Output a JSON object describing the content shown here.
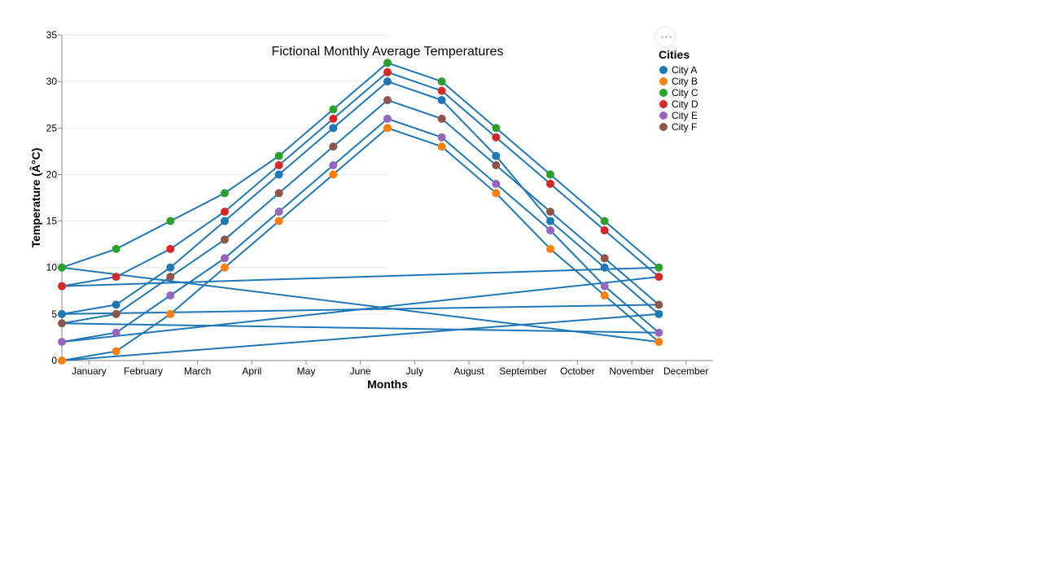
{
  "chart_data": {
    "type": "line",
    "title": "Fictional Monthly Average Temperatures",
    "xlabel": "Months",
    "ylabel": "Temperature (Â°C)",
    "ylim": [
      0,
      35
    ],
    "yticks": [
      0,
      5,
      10,
      15,
      20,
      25,
      30,
      35
    ],
    "grid": true,
    "legend_title": "Cities",
    "legend_position": "top-right",
    "line_color": "#1f77b4",
    "x_domain": [
      "January",
      "February",
      "March",
      "April",
      "May",
      "June",
      "July",
      "August",
      "September",
      "October",
      "November",
      "December"
    ],
    "x": [
      "January",
      "February",
      "March",
      "April",
      "May",
      "June",
      "July",
      "August",
      "September",
      "October",
      "November",
      "December"
    ],
    "series": [
      {
        "name": "City A",
        "color": "#1f77b4",
        "values": [
          5,
          6,
          10,
          15,
          20,
          25,
          30,
          28,
          22,
          15,
          10,
          5
        ]
      },
      {
        "name": "City B",
        "color": "#ff7f0e",
        "values": [
          0,
          1,
          5,
          10,
          15,
          20,
          25,
          23,
          18,
          12,
          7,
          2
        ]
      },
      {
        "name": "City C",
        "color": "#2ca02c",
        "values": [
          10,
          12,
          15,
          18,
          22,
          27,
          32,
          30,
          25,
          20,
          15,
          10
        ]
      },
      {
        "name": "City D",
        "color": "#d62728",
        "values": [
          8,
          9,
          12,
          16,
          21,
          26,
          31,
          29,
          24,
          19,
          14,
          9
        ]
      },
      {
        "name": "City E",
        "color": "#9467bd",
        "values": [
          2,
          3,
          7,
          11,
          16,
          21,
          26,
          24,
          19,
          14,
          8,
          3
        ]
      },
      {
        "name": "City F",
        "color": "#8c564b",
        "values": [
          4,
          5,
          9,
          13,
          18,
          23,
          28,
          26,
          21,
          16,
          11,
          6
        ]
      }
    ]
  }
}
